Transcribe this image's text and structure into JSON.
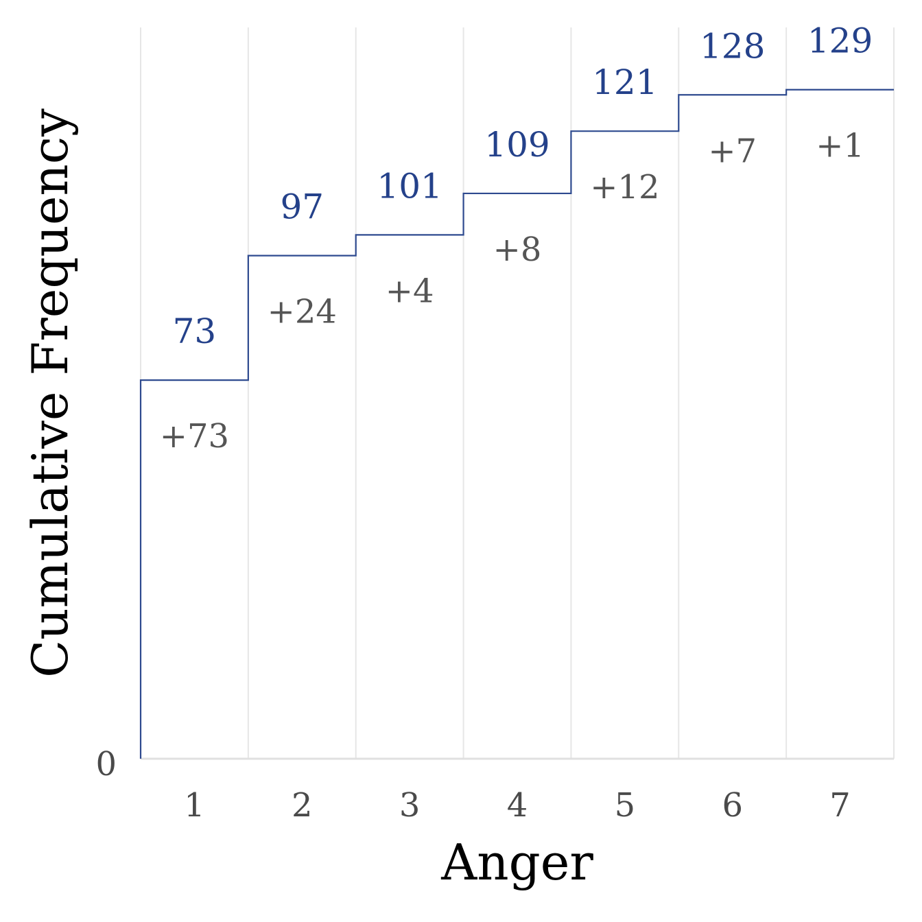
{
  "chart_data": {
    "type": "line",
    "step": true,
    "xlabel": "Anger",
    "ylabel": "Cumulative Frequency",
    "categories": [
      "1",
      "2",
      "3",
      "4",
      "5",
      "6",
      "7"
    ],
    "cumulative": [
      73,
      97,
      101,
      109,
      121,
      128,
      129
    ],
    "cumulative_labels": [
      "73",
      "97",
      "101",
      "109",
      "121",
      "128",
      "129"
    ],
    "increments": [
      "+73",
      "+24",
      "+4",
      "+8",
      "+12",
      "+7",
      "+1"
    ],
    "y_ticks": [
      "0"
    ],
    "ylim": [
      0,
      141
    ],
    "grid": "vertical",
    "colors": {
      "line": "#2e4a8f",
      "cumulative_label": "#24418a",
      "increment_label": "#555555",
      "grid": "#e6e6e6"
    }
  }
}
